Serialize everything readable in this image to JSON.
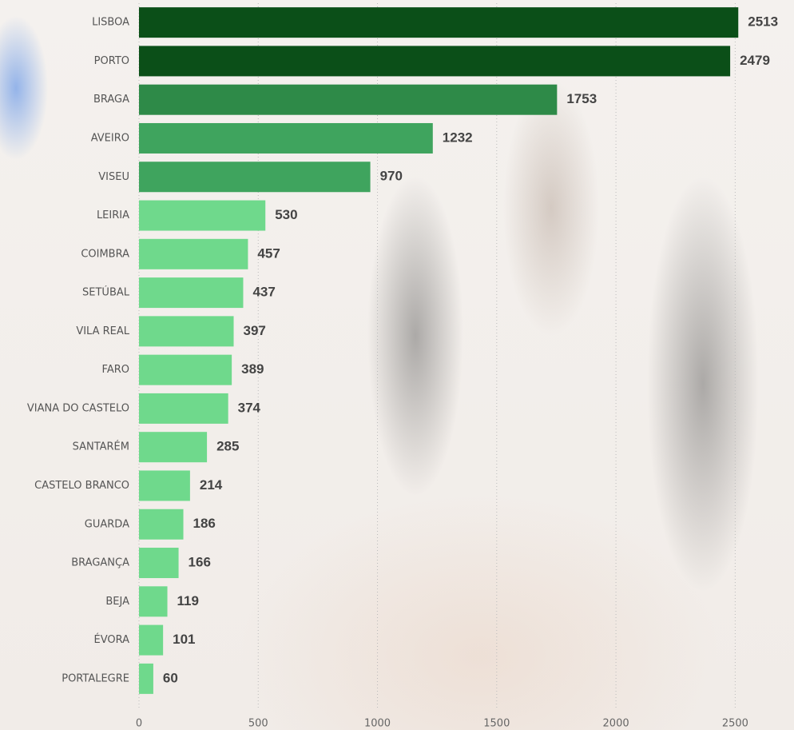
{
  "chart_data": {
    "type": "bar",
    "orientation": "horizontal",
    "categories": [
      "LISBOA",
      "PORTO",
      "BRAGA",
      "AVEIRO",
      "VISEU",
      "LEIRIA",
      "COIMBRA",
      "SETÚBAL",
      "VILA REAL",
      "FARO",
      "VIANA DO CASTELO",
      "SANTARÉM",
      "CASTELO BRANCO",
      "GUARDA",
      "BRAGANÇA",
      "BEJA",
      "ÉVORA",
      "PORTALEGRE"
    ],
    "values": [
      2513,
      2479,
      1753,
      1232,
      970,
      530,
      457,
      437,
      397,
      389,
      374,
      285,
      214,
      186,
      166,
      119,
      101,
      60
    ],
    "colors": [
      "#0b4f18",
      "#0b4f18",
      "#2e8a48",
      "#3fa45e",
      "#3fa45e",
      "#6fd98c",
      "#6fd98c",
      "#6fd98c",
      "#6fd98c",
      "#6fd98c",
      "#6fd98c",
      "#6fd98c",
      "#6fd98c",
      "#6fd98c",
      "#6fd98c",
      "#6fd98c",
      "#6fd98c",
      "#6fd98c"
    ],
    "xlim": [
      0,
      2750
    ],
    "xticks": [
      0,
      500,
      1000,
      1500,
      2000,
      2500
    ],
    "grid": true
  }
}
